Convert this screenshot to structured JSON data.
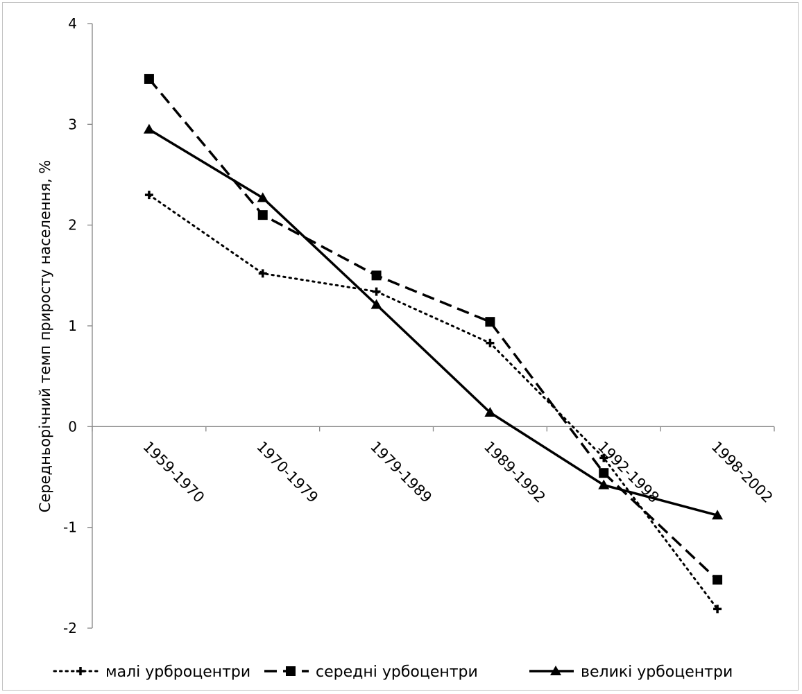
{
  "chart_data": {
    "type": "line",
    "title": "",
    "xlabel": "",
    "ylabel": "Середньорічний темп приросту населення, %",
    "ylim": [
      -2,
      4
    ],
    "yticks": [
      4,
      3,
      2,
      1,
      0,
      -1,
      -2
    ],
    "grid": false,
    "legend_position": "bottom",
    "categories": [
      "1959-1970",
      "1970-1979",
      "1979-1989",
      "1989-1992",
      "1992-1998",
      "1998-2002"
    ],
    "series": [
      {
        "name": "малі урброцентри",
        "values": [
          2.3,
          1.52,
          1.34,
          0.83,
          -0.31,
          -1.81
        ],
        "color": "#000000",
        "line_style": "dotted",
        "marker": "plus"
      },
      {
        "name": "середні урбоцентри",
        "values": [
          3.45,
          2.1,
          1.5,
          1.04,
          -0.46,
          -1.52
        ],
        "color": "#000000",
        "line_style": "dashed",
        "marker": "square"
      },
      {
        "name": "великі урбоцентри",
        "values": [
          2.95,
          2.27,
          1.21,
          0.14,
          -0.58,
          -0.88
        ],
        "color": "#000000",
        "line_style": "solid",
        "marker": "triangle"
      }
    ]
  }
}
